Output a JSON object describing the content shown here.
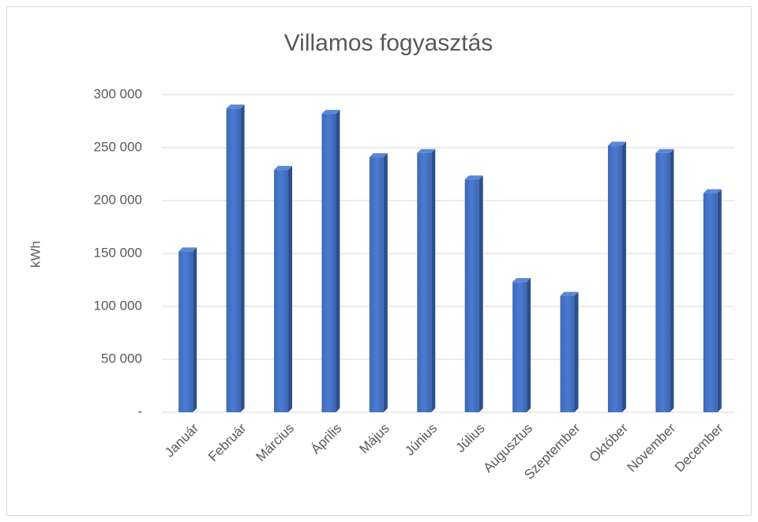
{
  "chart_data": {
    "type": "bar3d",
    "title": "Villamos fogyasztás",
    "y_label": "kWh",
    "categories": [
      "Január",
      "Február",
      "Március",
      "Április",
      "Május",
      "Június",
      "Július",
      "Augusztus",
      "Szeptember",
      "Október",
      "November",
      "December"
    ],
    "values": [
      152000,
      287000,
      229000,
      282000,
      241000,
      245000,
      220000,
      123000,
      110000,
      252000,
      245000,
      207000
    ],
    "color": "#4472c4",
    "ylim": [
      0,
      300000
    ],
    "yticks": [
      {
        "value": 0,
        "label": "-"
      },
      {
        "value": 50000,
        "label": "50 000"
      },
      {
        "value": 100000,
        "label": "100 000"
      },
      {
        "value": 150000,
        "label": "150 000"
      },
      {
        "value": 200000,
        "label": "200 000"
      },
      {
        "value": 250000,
        "label": "250 000"
      },
      {
        "value": 300000,
        "label": "300 000"
      }
    ],
    "grid": true
  }
}
